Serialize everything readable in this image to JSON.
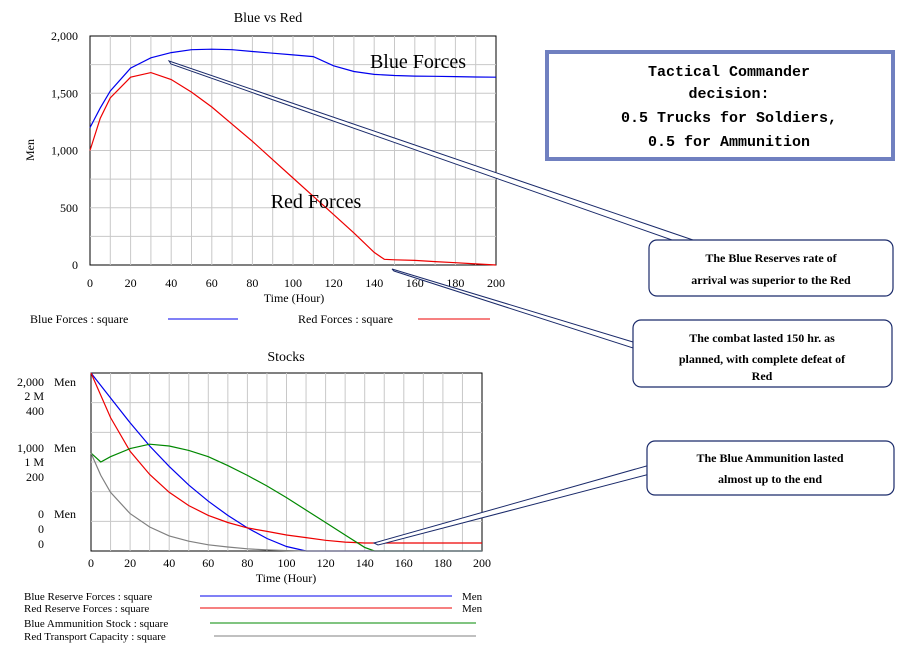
{
  "chart_data": [
    {
      "type": "line",
      "title": "Blue vs Red",
      "xlabel": "Time (Hour)",
      "ylabel": "Men",
      "xlim": [
        0,
        200
      ],
      "ylim": [
        0,
        2000
      ],
      "xticks": [
        "0",
        "20",
        "40",
        "60",
        "80",
        "100",
        "120",
        "140",
        "160",
        "180",
        "200"
      ],
      "yticks": [
        "2,000",
        "1,500",
        "1,000",
        "500",
        "0"
      ],
      "grid": true,
      "series": [
        {
          "name": "Blue Forces : square",
          "color": "#0000ee",
          "x": [
            0,
            5,
            10,
            20,
            30,
            40,
            50,
            60,
            70,
            80,
            90,
            100,
            110,
            120,
            130,
            140,
            150,
            160,
            170,
            180,
            190,
            200
          ],
          "y": [
            1200,
            1370,
            1520,
            1720,
            1810,
            1855,
            1880,
            1885,
            1880,
            1865,
            1850,
            1835,
            1820,
            1740,
            1690,
            1665,
            1655,
            1650,
            1648,
            1645,
            1642,
            1640
          ]
        },
        {
          "name": "Red Forces : square",
          "color": "#ee0000",
          "x": [
            0,
            5,
            10,
            20,
            30,
            40,
            50,
            60,
            70,
            80,
            90,
            100,
            110,
            120,
            130,
            140,
            145,
            150,
            160,
            170,
            180,
            190,
            200
          ],
          "y": [
            1000,
            1280,
            1460,
            1640,
            1680,
            1620,
            1510,
            1380,
            1230,
            1080,
            920,
            760,
            600,
            440,
            280,
            110,
            50,
            45,
            40,
            30,
            20,
            10,
            0
          ]
        }
      ],
      "series_labels": [
        "Blue Forces",
        "Red Forces"
      ],
      "legend": [
        "Blue Forces : square",
        "Red Forces : square"
      ]
    },
    {
      "type": "line",
      "title": "Stocks",
      "xlabel": "Time (Hour)",
      "xlim": [
        0,
        200
      ],
      "ylim": [
        0,
        2000
      ],
      "xticks": [
        "0",
        "20",
        "40",
        "60",
        "80",
        "100",
        "120",
        "140",
        "160",
        "180",
        "200"
      ],
      "ytick_groups": [
        {
          "labels": [
            "2,000",
            "2 M",
            "400"
          ],
          "unit": "Men"
        },
        {
          "labels": [
            "1,000",
            "1 M",
            "200"
          ],
          "unit": "Men"
        },
        {
          "labels": [
            "0",
            "0",
            "0"
          ],
          "unit": "Men"
        }
      ],
      "grid": true,
      "series": [
        {
          "name": "Blue Reserve Forces : square",
          "unit": "Men",
          "color": "#0000ee",
          "x": [
            0,
            10,
            20,
            30,
            40,
            50,
            60,
            70,
            80,
            90,
            100,
            110,
            200
          ],
          "y": [
            2000,
            1720,
            1440,
            1180,
            950,
            740,
            560,
            400,
            260,
            140,
            50,
            0,
            0
          ]
        },
        {
          "name": "Red Reserve Forces : square",
          "unit": "Men",
          "color": "#ee0000",
          "x": [
            0,
            10,
            20,
            30,
            40,
            50,
            60,
            70,
            80,
            90,
            100,
            110,
            120,
            130,
            140,
            150,
            200
          ],
          "y": [
            2000,
            1500,
            1120,
            860,
            660,
            510,
            400,
            320,
            260,
            220,
            180,
            150,
            120,
            100,
            90,
            90,
            90
          ]
        },
        {
          "name": "Blue Ammunition Stock : square",
          "unit": "",
          "color": "#008800",
          "x": [
            0,
            5,
            10,
            20,
            30,
            40,
            50,
            60,
            70,
            80,
            90,
            100,
            110,
            120,
            130,
            140,
            145,
            150,
            200
          ],
          "y": [
            1100,
            1000,
            1060,
            1150,
            1200,
            1180,
            1130,
            1060,
            960,
            850,
            730,
            600,
            460,
            320,
            180,
            40,
            0,
            0,
            0
          ]
        },
        {
          "name": "Red Transport Capacity : square",
          "unit": "",
          "color": "#808080",
          "x": [
            0,
            5,
            10,
            20,
            30,
            40,
            50,
            60,
            70,
            80,
            90,
            100,
            110,
            200
          ],
          "y": [
            1100,
            850,
            660,
            420,
            270,
            170,
            110,
            70,
            45,
            25,
            12,
            5,
            0,
            0
          ]
        }
      ],
      "legend": [
        {
          "label": "Blue Reserve Forces : square",
          "unit": "Men"
        },
        {
          "label": "Red Reserve Forces : square",
          "unit": "Men"
        },
        {
          "label": "Blue Ammunition Stock : square",
          "unit": ""
        },
        {
          "label": "Red Transport Capacity : square",
          "unit": ""
        }
      ]
    }
  ],
  "decision_box": {
    "lines": [
      "Tactical Commander",
      "decision:",
      "0.5 Trucks for Soldiers,",
      "0.5 for Ammunition"
    ]
  },
  "callouts": [
    {
      "lines": [
        "The Blue Reserves rate of",
        "arrival was superior to the Red"
      ]
    },
    {
      "lines": [
        "The combat lasted 150 hr. as",
        "planned, with complete defeat of",
        "Red"
      ]
    },
    {
      "lines": [
        "The Blue Ammunition lasted",
        "almost up to the end"
      ]
    }
  ]
}
